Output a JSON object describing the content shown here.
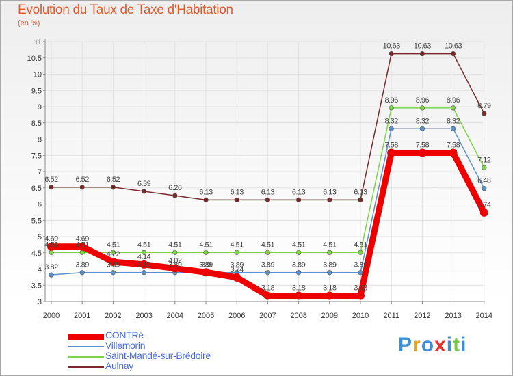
{
  "title": "Evolution du Taux de Taxe d'Habitation",
  "subtitle": "(en %)",
  "logo": {
    "text": "Proxiti",
    "colors": [
      "#3b8fd8",
      "#e8a020",
      "#3b8fd8",
      "#e83030",
      "#3b8fd8",
      "#7ac943",
      "#3b8fd8"
    ]
  },
  "chart_data": {
    "type": "line",
    "x": [
      "2000",
      "2001",
      "2002",
      "2003",
      "2004",
      "2005",
      "2006",
      "2007",
      "2008",
      "2009",
      "2010",
      "2011",
      "2012",
      "2013",
      "2014"
    ],
    "ylim": [
      3,
      11
    ],
    "yticks": [
      "3",
      "3.5",
      "4",
      "4.5",
      "5",
      "5.5",
      "6",
      "6.5",
      "7",
      "7.5",
      "8",
      "8.5",
      "9",
      "9.5",
      "10",
      "10.5",
      "11"
    ],
    "grid": true,
    "legend_position": "bottom-left",
    "series": [
      {
        "name": "CONTRé",
        "color": "#ee0000",
        "width": 9,
        "values": [
          4.69,
          4.69,
          4.22,
          4.14,
          4.02,
          3.9,
          3.74,
          3.18,
          3.18,
          3.18,
          3.18,
          7.58,
          7.58,
          7.58,
          5.74
        ],
        "labels": [
          "4.69",
          "4.69",
          "4.22",
          "4.14",
          "4.02",
          "3.9",
          "3.74",
          "3.18",
          "3.18",
          "3.18",
          "3.18",
          "7.58",
          "7.58",
          "7.58",
          "5.74"
        ]
      },
      {
        "name": "Villemorin",
        "color": "#5b8fc8",
        "width": 1.5,
        "values": [
          3.82,
          3.89,
          3.89,
          3.89,
          3.89,
          3.89,
          3.89,
          3.89,
          3.89,
          3.89,
          3.89,
          8.32,
          8.32,
          8.32,
          6.48
        ],
        "labels": [
          "3.82",
          "3.89",
          "3.89",
          "3.89",
          "3.89",
          "3.89",
          "3.89",
          "3.89",
          "3.89",
          "3.89",
          "3.89",
          "8.32",
          "8.32",
          "8.32",
          "6.48"
        ]
      },
      {
        "name": "Saint-Mandé-sur-Brédoire",
        "color": "#7ed34a",
        "width": 1.5,
        "values": [
          4.51,
          4.51,
          4.51,
          4.51,
          4.51,
          4.51,
          4.51,
          4.51,
          4.51,
          4.51,
          4.51,
          8.96,
          8.96,
          8.96,
          7.12
        ],
        "labels": [
          "4.51",
          "4.51",
          "4.51",
          "4.51",
          "4.51",
          "4.51",
          "4.51",
          "4.51",
          "4.51",
          "4.51",
          "4.51",
          "8.96",
          "8.96",
          "8.96",
          "7.12"
        ]
      },
      {
        "name": "Aulnay",
        "color": "#7a2a2a",
        "width": 1.5,
        "values": [
          6.52,
          6.52,
          6.52,
          6.39,
          6.26,
          6.13,
          6.13,
          6.13,
          6.13,
          6.13,
          6.13,
          10.63,
          10.63,
          10.63,
          8.79
        ],
        "labels": [
          "6.52",
          "6.52",
          "6.52",
          "6.39",
          "6.26",
          "6.13",
          "6.13",
          "6.13",
          "6.13",
          "6.13",
          "6.13",
          "10.63",
          "10.63",
          "10.63",
          "8.79"
        ]
      }
    ]
  }
}
